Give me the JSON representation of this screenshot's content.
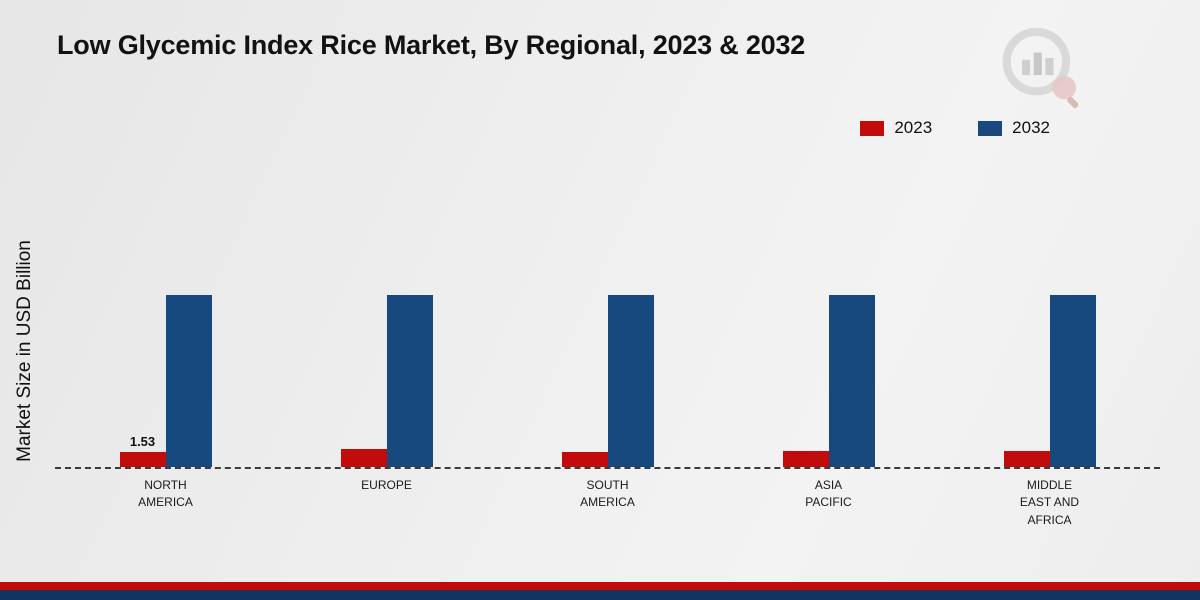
{
  "title": "Low Glycemic Index Rice Market, By Regional, 2023 & 2032",
  "ylabel": "Market Size in USD Billion",
  "legend": [
    {
      "label": "2023"
    },
    {
      "label": "2032"
    }
  ],
  "colors": {
    "accent_red": "#c20c0c",
    "accent_navy": "#12355f"
  },
  "chart_data": {
    "type": "bar",
    "title": "Low Glycemic Index Rice Market, By Regional, 2023 & 2032",
    "xlabel": "",
    "ylabel": "Market Size in USD Billion",
    "categories": [
      "NORTH AMERICA",
      "EUROPE",
      "SOUTH AMERICA",
      "ASIA PACIFIC",
      "MIDDLE EAST AND AFRICA"
    ],
    "series": [
      {
        "name": "2023",
        "color": "#c20c0c",
        "values": [
          1.53,
          1.8,
          1.5,
          1.6,
          1.6
        ]
      },
      {
        "name": "2032",
        "color": "#17497f",
        "values": [
          17.5,
          17.5,
          17.5,
          17.5,
          17.5
        ]
      }
    ],
    "annotations": [
      {
        "series": "2023",
        "category_index": 0,
        "text": "1.53"
      }
    ],
    "ylim": [
      0,
      35
    ],
    "grid": false,
    "legend_position": "top-right",
    "baseline_style": "dashed"
  }
}
